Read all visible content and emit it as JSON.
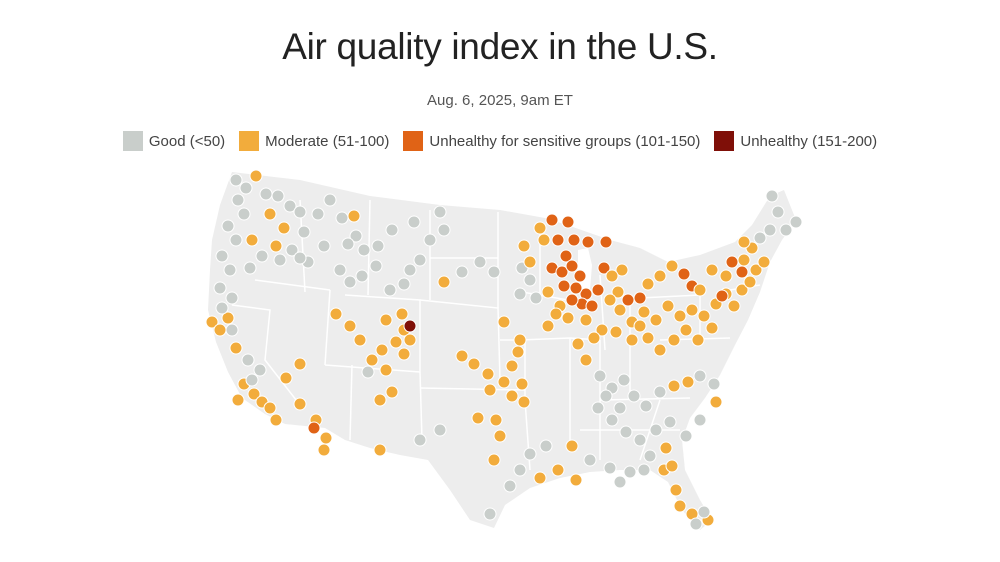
{
  "title": "Air quality index in the U.S.",
  "subtitle": "Aug. 6, 2025, 9am ET",
  "legend": [
    {
      "label": "Good (<50)",
      "color": "#c9cecb"
    },
    {
      "label": "Moderate (51-100)",
      "color": "#f2ac3c"
    },
    {
      "label": "Unhealthy for sensitive groups (101-150)",
      "color": "#e06316"
    },
    {
      "label": "Unhealthy (151-200)",
      "color": "#7f0f08"
    }
  ],
  "colors": {
    "land": "#ededed",
    "border": "#ffffff",
    "marker_stroke": "#ffffff"
  }
}
